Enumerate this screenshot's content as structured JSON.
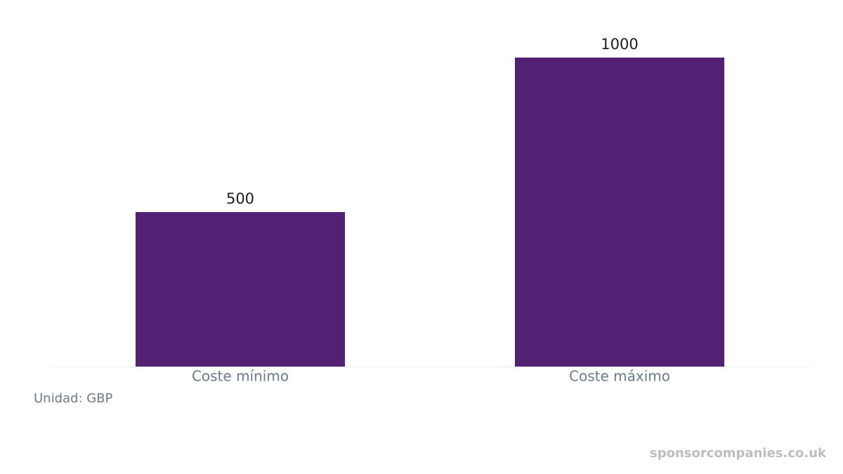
{
  "chart_data": {
    "type": "bar",
    "categories": [
      "Coste mínimo",
      "Coste máximo"
    ],
    "values": [
      500,
      1000
    ],
    "color": "#522174",
    "unit_note": "Unidad: GBP",
    "watermark": "sponsorcompanies.co.uk"
  }
}
